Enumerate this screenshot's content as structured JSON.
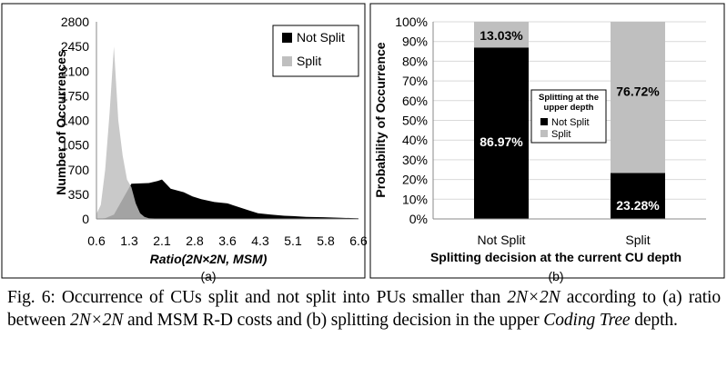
{
  "chart_data": [
    {
      "type": "area",
      "panel_label": "(a)",
      "xlabel": "Ratio(2N×2N, MSM)",
      "ylabel": "Number of Occurrences",
      "ylim": [
        0,
        2800
      ],
      "yticks": [
        "0",
        "350",
        "700",
        "1050",
        "1400",
        "1750",
        "2100",
        "2450",
        "2800"
      ],
      "xticks": [
        "0.6",
        "1.3",
        "2.1",
        "2.8",
        "3.6",
        "4.3",
        "5.1",
        "5.8",
        "6.6"
      ],
      "xlim": [
        0.6,
        6.6
      ],
      "legend_position": "top-right",
      "series": [
        {
          "name": "Not Split",
          "color": "#000000",
          "x": [
            0.6,
            0.8,
            1.0,
            1.2,
            1.4,
            1.6,
            1.8,
            2.0,
            2.1,
            2.3,
            2.6,
            2.8,
            3.0,
            3.3,
            3.6,
            3.9,
            4.1,
            4.3,
            4.6,
            4.9,
            5.1,
            5.4,
            5.8,
            6.2,
            6.6
          ],
          "values": [
            0,
            10,
            60,
            280,
            500,
            505,
            510,
            540,
            560,
            430,
            380,
            320,
            280,
            240,
            220,
            160,
            120,
            80,
            60,
            45,
            40,
            30,
            25,
            15,
            10
          ]
        },
        {
          "name": "Split",
          "color": "#bfbfbf",
          "x": [
            0.6,
            0.7,
            0.8,
            0.9,
            1.0,
            1.1,
            1.2,
            1.3,
            1.4,
            1.5,
            1.6,
            1.7,
            1.8,
            2.0,
            2.2,
            2.6
          ],
          "values": [
            70,
            200,
            700,
            1500,
            2450,
            1400,
            900,
            560,
            450,
            220,
            80,
            30,
            10,
            5,
            0,
            0
          ]
        }
      ]
    },
    {
      "type": "bar",
      "stacked": true,
      "panel_label": "(b)",
      "xlabel": "Splitting decision at the current CU depth",
      "ylabel": "Probability of Occurrence",
      "categories": [
        "Not Split",
        "Split"
      ],
      "ylim": [
        0,
        100
      ],
      "yticks": [
        "0%",
        "10%",
        "20%",
        "30%",
        "40%",
        "50%",
        "60%",
        "70%",
        "80%",
        "90%",
        "100%"
      ],
      "legend_title": "Splitting at the upper depth",
      "legend_position": "center",
      "series": [
        {
          "name": "Not Split",
          "color": "#000000",
          "values": [
            86.97,
            23.28
          ],
          "labels": [
            "86.97%",
            "23.28%"
          ]
        },
        {
          "name": "Split",
          "color": "#bfbfbf",
          "values": [
            13.03,
            76.72
          ],
          "labels": [
            "13.03%",
            "76.72%"
          ]
        }
      ]
    }
  ],
  "caption": {
    "line1_a": "Fig. 6: Occurrence of CUs split and not split into PUs smaller than ",
    "line1_b": "2N×2N",
    "line2_a": "according to (a) ratio between ",
    "line2_b": "2N×2N",
    "line2_c": " and MSM R-D costs and (b) splitting",
    "line3_a": "decision in the upper ",
    "line3_b": "Coding Tree",
    "line3_c": " depth."
  }
}
